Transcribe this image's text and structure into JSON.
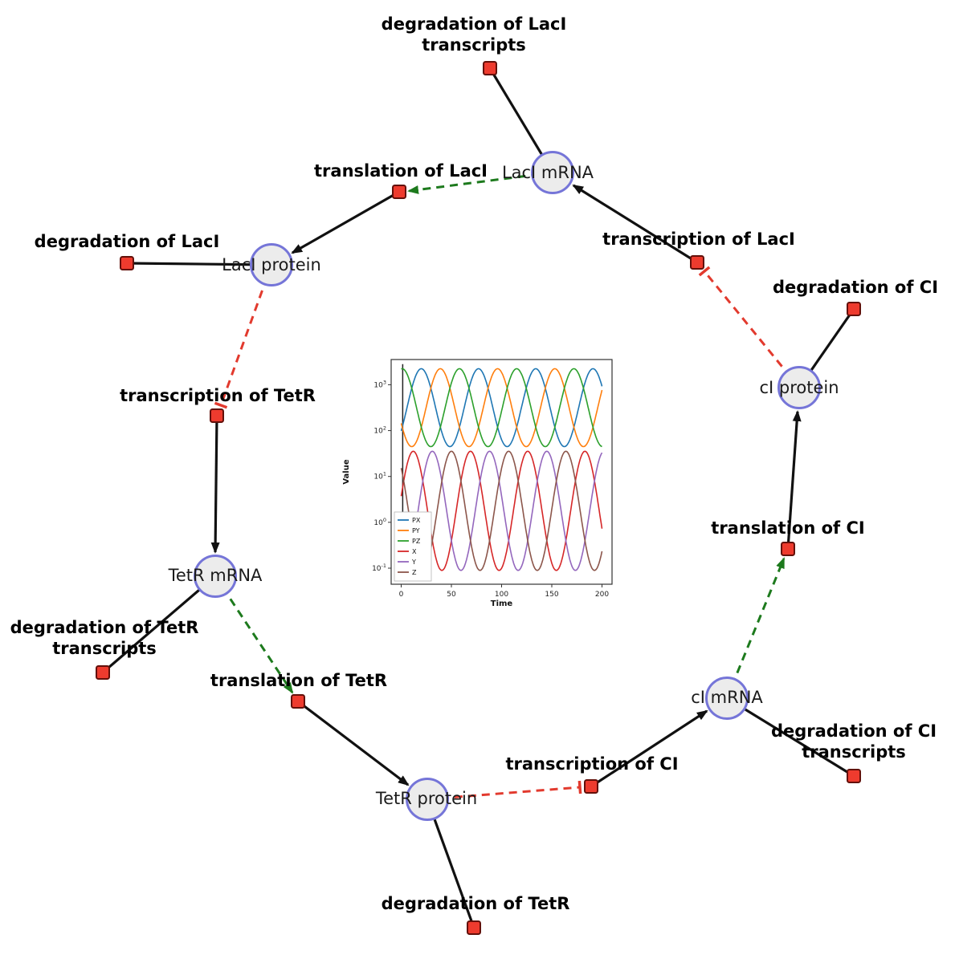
{
  "diagram": {
    "species": [
      {
        "id": "laci-mrna",
        "label": "LacI mRNA"
      },
      {
        "id": "laci-protein",
        "label": "LacI protein"
      },
      {
        "id": "tetr-mrna",
        "label": "TetR mRNA"
      },
      {
        "id": "tetr-protein",
        "label": "TetR protein"
      },
      {
        "id": "ci-mrna",
        "label": "cI mRNA"
      },
      {
        "id": "ci-protein",
        "label": "cI protein"
      }
    ],
    "reactions": [
      {
        "id": "deg-laci-transcripts",
        "label": "degradation of LacI transcripts",
        "label_line1": "degradation of LacI",
        "label_line2": "transcripts"
      },
      {
        "id": "translation-laci",
        "label": "translation of LacI",
        "label_line1": "translation of LacI"
      },
      {
        "id": "transcription-laci",
        "label": "transcription of LacI",
        "label_line1": "transcription of LacI"
      },
      {
        "id": "deg-laci",
        "label": "degradation of LacI",
        "label_line1": "degradation of LacI"
      },
      {
        "id": "deg-ci",
        "label": "degradation of CI",
        "label_line1": "degradation of CI"
      },
      {
        "id": "transcription-tetr",
        "label": "transcription of TetR",
        "label_line1": "transcription of TetR"
      },
      {
        "id": "translation-ci",
        "label": "translation of CI",
        "label_line1": "translation of CI"
      },
      {
        "id": "deg-tetr-transcripts",
        "label": "degradation of TetR transcripts",
        "label_line1": "degradation of TetR",
        "label_line2": "transcripts"
      },
      {
        "id": "translation-tetr",
        "label": "translation of TetR",
        "label_line1": "translation of TetR"
      },
      {
        "id": "transcription-ci",
        "label": "transcription of CI",
        "label_line1": "transcription of CI"
      },
      {
        "id": "deg-ci-transcripts",
        "label": "degradation of CI transcripts",
        "label_line1": "degradation of CI",
        "label_line2": "transcripts"
      },
      {
        "id": "deg-tetr",
        "label": "degradation of TetR",
        "label_line1": "degradation of TetR"
      }
    ],
    "edges": [
      {
        "from": "laci-mrna",
        "to": "deg-laci-transcripts",
        "type": "consumption"
      },
      {
        "from": "translation-laci",
        "to": "laci-protein",
        "type": "production"
      },
      {
        "from": "laci-mrna",
        "to": "translation-laci",
        "type": "modifier"
      },
      {
        "from": "transcription-laci",
        "to": "laci-mrna",
        "type": "production"
      },
      {
        "from": "ci-protein",
        "to": "transcription-laci",
        "type": "inhibition"
      },
      {
        "from": "laci-protein",
        "to": "deg-laci",
        "type": "consumption"
      },
      {
        "from": "laci-protein",
        "to": "transcription-tetr",
        "type": "inhibition"
      },
      {
        "from": "transcription-tetr",
        "to": "tetr-mrna",
        "type": "production"
      },
      {
        "from": "tetr-mrna",
        "to": "deg-tetr-transcripts",
        "type": "consumption"
      },
      {
        "from": "tetr-mrna",
        "to": "translation-tetr",
        "type": "modifier"
      },
      {
        "from": "translation-tetr",
        "to": "tetr-protein",
        "type": "production"
      },
      {
        "from": "tetr-protein",
        "to": "deg-tetr",
        "type": "consumption"
      },
      {
        "from": "tetr-protein",
        "to": "transcription-ci",
        "type": "inhibition"
      },
      {
        "from": "transcription-ci",
        "to": "ci-mrna",
        "type": "production"
      },
      {
        "from": "ci-mrna",
        "to": "deg-ci-transcripts",
        "type": "consumption"
      },
      {
        "from": "ci-mrna",
        "to": "translation-ci",
        "type": "modifier"
      },
      {
        "from": "translation-ci",
        "to": "ci-protein",
        "type": "production"
      },
      {
        "from": "ci-protein",
        "to": "deg-ci",
        "type": "consumption"
      }
    ],
    "colors": {
      "species_fill": "#ececec",
      "species_border": "#7575d8",
      "reaction_fill": "#ee3b2e",
      "reaction_border": "#63100a",
      "edge_solid": "#111111",
      "edge_modifier": "#1d7a1d",
      "edge_inhibition": "#e23a2e"
    }
  },
  "chart_data": {
    "type": "line",
    "xlabel": "Time",
    "ylabel": "Value",
    "x_ticks": [
      0,
      50,
      100,
      150,
      200
    ],
    "xlim": [
      -10,
      210
    ],
    "y_scale": "log",
    "y_tick_exponents": [
      -1,
      0,
      1,
      2,
      3
    ],
    "ylim_log10": [
      -1.35,
      3.55
    ],
    "grid": false,
    "legend_position": "lower left",
    "legend": [
      "PX",
      "PY",
      "PZ",
      "X",
      "Y",
      "Z"
    ],
    "initial_transient_t": 1.5,
    "series": [
      {
        "name": "PX",
        "color": "#1f77b4",
        "log10_mid": 2.5,
        "log10_amp": 0.85,
        "period": 57,
        "peak_t": 20,
        "approx_min": 45,
        "approx_max": 2200
      },
      {
        "name": "PY",
        "color": "#ff7f0e",
        "log10_mid": 2.5,
        "log10_amp": 0.85,
        "period": 57,
        "peak_t": 39,
        "approx_min": 45,
        "approx_max": 2200
      },
      {
        "name": "PZ",
        "color": "#2ca02c",
        "log10_mid": 2.5,
        "log10_amp": 0.85,
        "period": 57,
        "peak_t": 58,
        "approx_min": 45,
        "approx_max": 2200
      },
      {
        "name": "X",
        "color": "#d62728",
        "log10_mid": 0.25,
        "log10_amp": 1.3,
        "period": 57,
        "peak_t": 12,
        "approx_min": 0.09,
        "approx_max": 35
      },
      {
        "name": "Y",
        "color": "#9467bd",
        "log10_mid": 0.25,
        "log10_amp": 1.3,
        "period": 57,
        "peak_t": 31,
        "approx_min": 0.09,
        "approx_max": 35
      },
      {
        "name": "Z",
        "color": "#8c564b",
        "log10_mid": 0.25,
        "log10_amp": 1.3,
        "period": 57,
        "peak_t": 50,
        "approx_min": 0.09,
        "approx_max": 35
      }
    ]
  }
}
